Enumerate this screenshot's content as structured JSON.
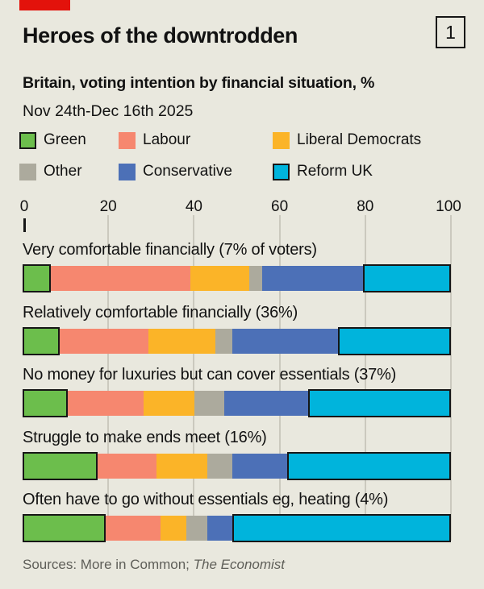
{
  "header": {
    "title": "Heroes of the downtrodden",
    "index_label": "1",
    "subtitle": "Britain, voting intention by financial situation, %",
    "date_range": "Nov 24th-Dec 16th 2025"
  },
  "colors": {
    "background": "#E9E8DE",
    "red_tag": "#E3120B",
    "text": "#121212",
    "outline_black": "#161616",
    "gridline": "#CBC9BE",
    "footer_text": "#5E5E58",
    "green": "#6CBE4C",
    "labour": "#F6876F",
    "liberal_democrats": "#FBB428",
    "other": "#ACAA9D",
    "conservative": "#4C70B7",
    "reform_uk": "#00B4DC"
  },
  "legend": {
    "items": [
      {
        "label": "Green",
        "color": "#6CBE4C",
        "outlined": true
      },
      {
        "label": "Labour",
        "color": "#F6876F",
        "outlined": false
      },
      {
        "label": "Liberal Democrats",
        "color": "#FBB428",
        "outlined": false
      },
      {
        "label": "Other",
        "color": "#ACAA9D",
        "outlined": false
      },
      {
        "label": "Conservative",
        "color": "#4C70B7",
        "outlined": false
      },
      {
        "label": "Reform UK",
        "color": "#00B4DC",
        "outlined": true
      }
    ]
  },
  "axis": {
    "ticks": [
      "0",
      "20",
      "40",
      "60",
      "80",
      "100"
    ]
  },
  "chart_data": {
    "type": "bar",
    "orientation": "horizontal",
    "stacked": true,
    "unit": "%",
    "xlim": [
      0,
      100
    ],
    "grid": true,
    "title": "Heroes of the downtrodden",
    "subtitle": "Britain, voting intention by financial situation, %",
    "categories": [
      "Very comfortable financially (7% of voters)",
      "Relatively comfortable financially (36%)",
      "No money for luxuries but can cover essentials (37%)",
      "Struggle to make ends meet (16%)",
      "Often have to go without essentials eg, heating (4%)"
    ],
    "series": [
      {
        "name": "Green",
        "color": "#6CBE4C",
        "outlined": true,
        "values": [
          6,
          8,
          10,
          17,
          19
        ]
      },
      {
        "name": "Labour",
        "color": "#F6876F",
        "outlined": false,
        "values": [
          33,
          21,
          18,
          14,
          13
        ]
      },
      {
        "name": "Liberal Democrats",
        "color": "#FBB428",
        "outlined": false,
        "values": [
          14,
          16,
          12,
          12,
          6
        ]
      },
      {
        "name": "Other",
        "color": "#ACAA9D",
        "outlined": false,
        "values": [
          3,
          4,
          7,
          6,
          5
        ]
      },
      {
        "name": "Conservative",
        "color": "#4C70B7",
        "outlined": false,
        "values": [
          24,
          25,
          20,
          13,
          6
        ]
      },
      {
        "name": "Reform UK",
        "color": "#00B4DC",
        "outlined": true,
        "values": [
          20,
          26,
          33,
          38,
          51
        ]
      }
    ]
  },
  "footer": {
    "sources_prefix": "Sources: More in Common; ",
    "sources_italic": "The Economist"
  }
}
